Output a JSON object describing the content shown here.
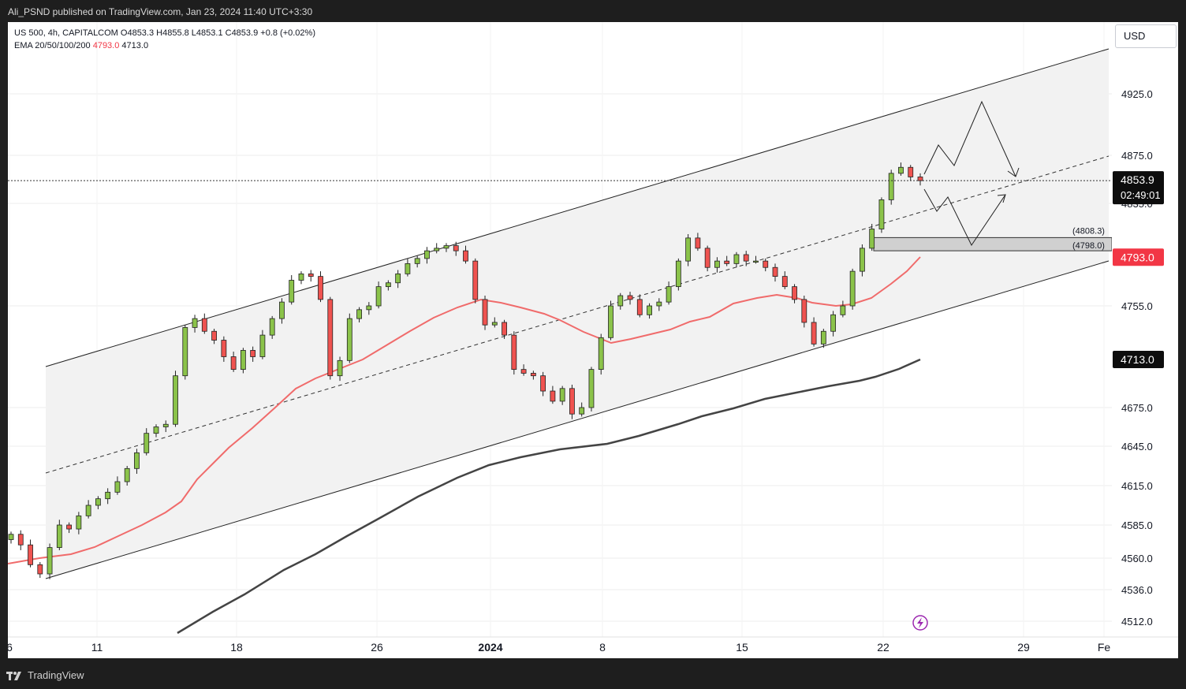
{
  "header": {
    "publisher_line": "Ali_PSND published on TradingView.com, Jan 23, 2024 11:40 UTC+3:30"
  },
  "legend": {
    "symbol_line": "US 500, 4h, CAPITALCOM  O4853.3  H4855.8  L4853.1  C4853.9  +0.8 (+0.02%)",
    "ema_label": "EMA 20/50/100/200",
    "ema_value_red": "4793.0",
    "ema_value_dark": "4713.0"
  },
  "currency": "USD",
  "price_tag": {
    "price": "4853.9",
    "countdown": "02:49:01"
  },
  "zone_labels": [
    "(4808.3)",
    "(4798.0)"
  ],
  "footer": {
    "brand": "TradingView"
  },
  "colors": {
    "up": "#8bc34a",
    "down": "#ef5350",
    "ema_red": "#f06b6b",
    "ema_dark": "#444444",
    "channel_fill": "#f2f2f2",
    "zone_fill": "#d0d0d0",
    "tag_red": "#f23645",
    "tag_dark": "#0d0d0d",
    "lightning": "#9c27b0"
  },
  "chart_data": {
    "type": "candlestick",
    "symbol": "US 500",
    "timeframe": "4h",
    "y_axis": {
      "ticks": [
        4925.0,
        4875.0,
        4835.0,
        4755.0,
        4675.0,
        4645.0,
        4615.0,
        4585.0,
        4560.0,
        4536.0,
        4512.0
      ],
      "tick_labels": [
        "4925.0",
        "4875.0",
        "4835.0",
        "4755.0",
        "4675.0",
        "4645.0",
        "4615.0",
        "4585.0",
        "4560.0",
        "4536.0",
        "4512.0"
      ]
    },
    "x_axis": {
      "tick_labels": [
        "6",
        "11",
        "18",
        "26",
        "2024",
        "8",
        "15",
        "22",
        "29",
        "Fe"
      ]
    },
    "candles_close_path": [
      4578,
      4570,
      4555,
      4548,
      4568,
      4585,
      4582,
      4592,
      4600,
      4605,
      4610,
      4618,
      4628,
      4640,
      4655,
      4660,
      4662,
      4700,
      4738,
      4745,
      4735,
      4728,
      4715,
      4705,
      4720,
      4715,
      4732,
      4745,
      4758,
      4775,
      4780,
      4778,
      4760,
      4700,
      4712,
      4745,
      4752,
      4755,
      4770,
      4773,
      4780,
      4788,
      4792,
      4798,
      4800,
      4802,
      4798,
      4790,
      4760,
      4740,
      4742,
      4732,
      4705,
      4702,
      4700,
      4688,
      4680,
      4690,
      4670,
      4675,
      4705,
      4730,
      4755,
      4763,
      4760,
      4748,
      4755,
      4758,
      4770,
      4790,
      4808,
      4800,
      4785,
      4790,
      4788,
      4795,
      4790,
      4790,
      4785,
      4778,
      4770,
      4760,
      4742,
      4725,
      4735,
      4748,
      4755,
      4782,
      4800,
      4815,
      4838,
      4860,
      4865,
      4857,
      4853.9
    ],
    "series": [
      {
        "name": "EMA 20/50/100/200",
        "last_value": 4793.0
      },
      {
        "last_value": 4713.0
      }
    ],
    "annotations": {
      "zone": [
        4798.0,
        4808.3
      ],
      "last_price": 4853.9,
      "channel": "rising parallel channel with dashed midline",
      "projections": [
        "up path",
        "down path"
      ]
    }
  }
}
